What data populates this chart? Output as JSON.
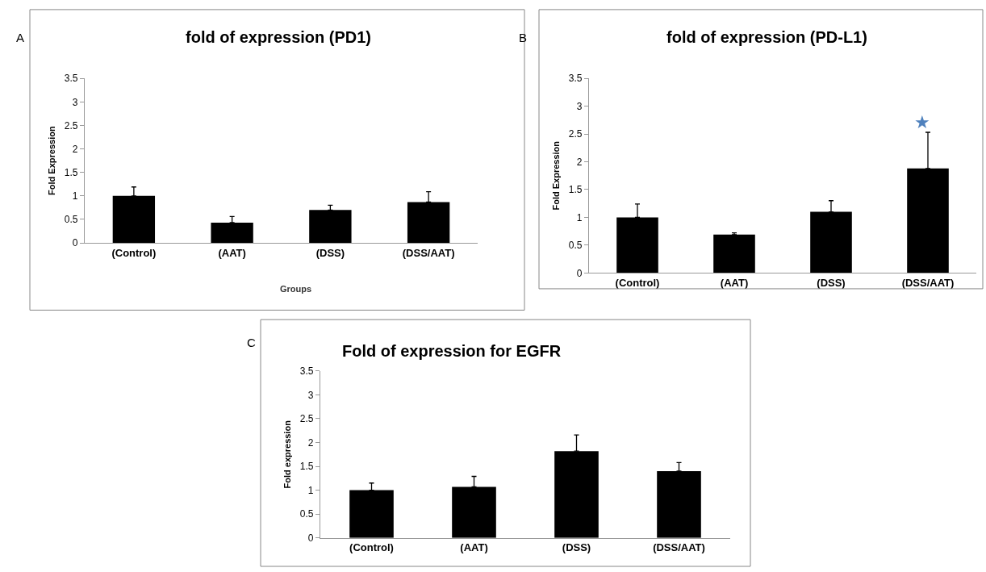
{
  "chart_data": [
    {
      "type": "bar",
      "title": "fold of expression (PD1)",
      "xlabel": "Groups",
      "ylabel": "Fold Expression",
      "annotations": [
        "A"
      ],
      "categories": [
        "(Control)",
        "(AAT)",
        "(DSS)",
        "(DSS/AAT)"
      ],
      "values": [
        1.0,
        0.43,
        0.7,
        0.87
      ],
      "color": "#000000",
      "errors": [
        [
          1.0,
          1.19
        ],
        [
          0.43,
          0.56
        ],
        [
          0.7,
          0.8
        ],
        [
          0.87,
          1.09
        ]
      ],
      "ylim": [
        0,
        3.5
      ],
      "yticks": [
        0,
        0.5,
        1,
        1.5,
        2,
        2.5,
        3,
        3.5
      ]
    },
    {
      "type": "bar",
      "title": "fold of expression (PD-L1)",
      "ylabel": "Fold Expression",
      "annotations": [
        "B",
        "★"
      ],
      "categories": [
        "(Control)",
        "(AAT)",
        "(DSS)",
        "(DSS/AAT)"
      ],
      "values": [
        1.0,
        0.69,
        1.1,
        1.88
      ],
      "color": "#000000",
      "errors": [
        [
          1.0,
          1.24
        ],
        [
          0.69,
          0.72
        ],
        [
          1.1,
          1.3
        ],
        [
          1.88,
          2.53
        ]
      ],
      "ylim": [
        0,
        3.5
      ],
      "yticks": [
        0,
        0.5,
        1,
        1.5,
        2,
        2.5,
        3,
        3.5
      ]
    },
    {
      "type": "bar",
      "title": "Fold of expression for EGFR",
      "ylabel": "Fold expression",
      "annotations": [
        "C"
      ],
      "categories": [
        "(Control)",
        "(AAT)",
        "(DSS)",
        "(DSS/AAT)"
      ],
      "values": [
        1.0,
        1.07,
        1.82,
        1.4
      ],
      "color": "#000000",
      "errors": [
        [
          1.0,
          1.15
        ],
        [
          1.07,
          1.29
        ],
        [
          1.82,
          2.16
        ],
        [
          1.4,
          1.58
        ]
      ],
      "ylim": [
        0,
        3.5
      ],
      "yticks": [
        0,
        0.5,
        1,
        1.5,
        2,
        2.5,
        3,
        3.5
      ]
    }
  ]
}
